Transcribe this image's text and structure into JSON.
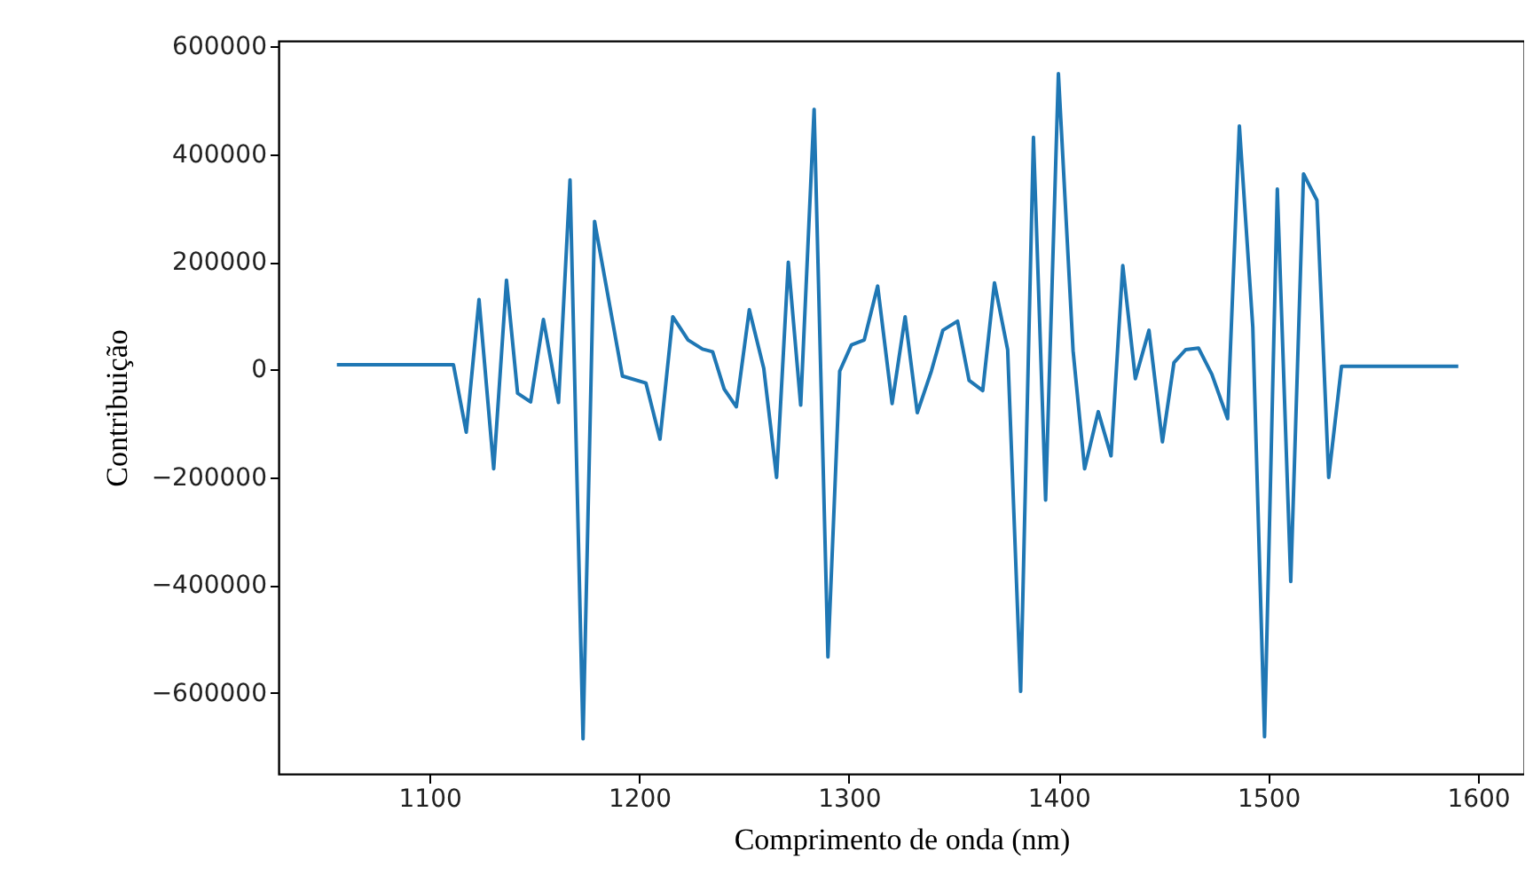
{
  "chart_data": {
    "type": "line",
    "xlabel": "Comprimento de onda (nm)",
    "ylabel": "Contribuição",
    "x": [
      1055.8,
      1111.4,
      1117.5,
      1123.6,
      1130.6,
      1136.7,
      1142,
      1148.2,
      1154.3,
      1161.5,
      1167,
      1173.2,
      1178.7,
      1192,
      1203.2,
      1209.9,
      1216,
      1223.3,
      1230.2,
      1235,
      1240.5,
      1246.3,
      1252.5,
      1259.4,
      1265.5,
      1271.1,
      1277,
      1283.4,
      1290,
      1295.6,
      1301.2,
      1307.3,
      1313.7,
      1320.6,
      1326.8,
      1332.6,
      1339.3,
      1344.8,
      1351.8,
      1357.3,
      1363.8,
      1369.4,
      1375.7,
      1381.9,
      1388,
      1393.8,
      1399.9,
      1406.9,
      1412.4,
      1418.9,
      1425,
      1430.6,
      1436.6,
      1443.1,
      1449.5,
      1455,
      1460.6,
      1466.7,
      1473.1,
      1480.6,
      1486.2,
      1492.6,
      1498.2,
      1504.3,
      1510.7,
      1516.8,
      1523.2,
      1528.8,
      1534.9,
      1590.6
    ],
    "series": [
      {
        "color": "#1f77b4",
        "values": [
          9000,
          9000,
          -116000,
          130000,
          -184000,
          166000,
          -44000,
          -60000,
          93000,
          -61000,
          352000,
          -685000,
          275000,
          -12000,
          -25000,
          -129000,
          98000,
          55000,
          38000,
          33000,
          -36000,
          -69000,
          111000,
          2000,
          -200000,
          199000,
          -66000,
          483000,
          -533000,
          -3000,
          46000,
          55000,
          155000,
          -63000,
          98000,
          -80000,
          -3000,
          73000,
          90000,
          -20000,
          -39000,
          161000,
          37000,
          -597000,
          431000,
          -242000,
          549000,
          35000,
          -184000,
          -78000,
          -160000,
          193000,
          -17000,
          73000,
          -134000,
          13000,
          37000,
          40000,
          -9000,
          -91000,
          452000,
          79000,
          -681000,
          335000,
          -393000,
          363000,
          314000,
          -200000,
          6000,
          6000
        ]
      }
    ],
    "xlim": [
      1028,
      1622
    ],
    "xticks": [
      1100,
      1200,
      1300,
      1400,
      1500,
      1600
    ],
    "ylim": [
      -750000,
      610000
    ],
    "yticks": [
      -600000,
      -400000,
      -200000,
      0,
      200000,
      400000,
      600000
    ],
    "grid": false,
    "legend": false,
    "marker": "none",
    "line_style": "solid"
  }
}
